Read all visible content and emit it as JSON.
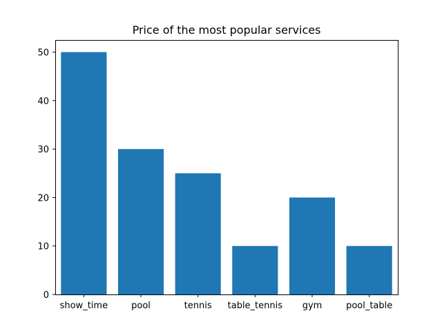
{
  "chart_data": {
    "type": "bar",
    "title": "Price of the most popular services",
    "xlabel": "",
    "ylabel": "",
    "categories": [
      "show_time",
      "pool",
      "tennis",
      "table_tennis",
      "gym",
      "pool_table"
    ],
    "values": [
      50,
      30,
      25,
      10,
      20,
      10
    ],
    "ylim": [
      0,
      52.5
    ],
    "yticks": [
      0,
      10,
      20,
      30,
      40,
      50
    ],
    "grid": false,
    "legend": "none",
    "bar_color": "#1f77b4"
  }
}
